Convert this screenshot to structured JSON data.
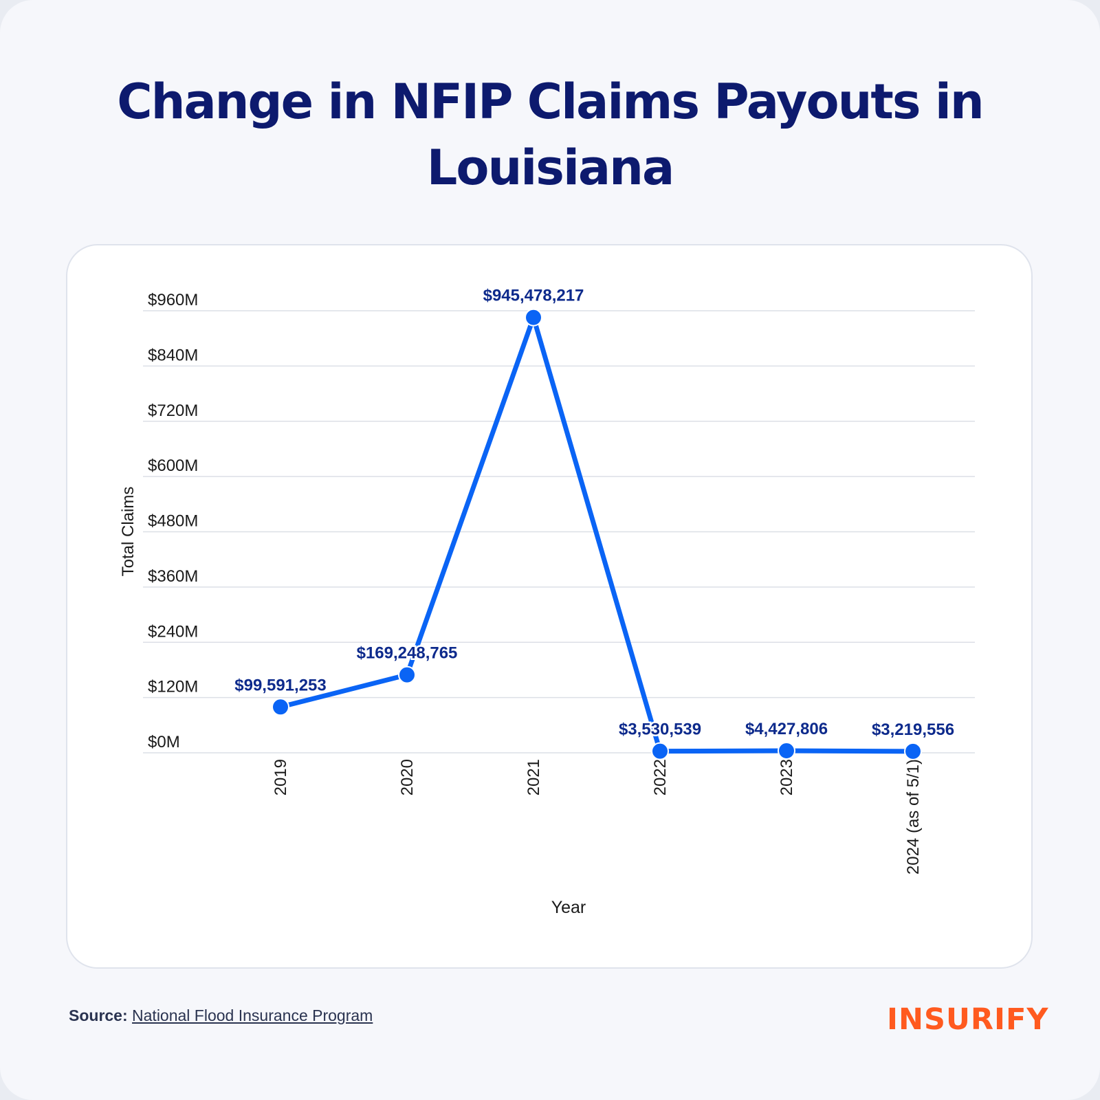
{
  "title": "Change in NFIP Claims Payouts in Louisiana",
  "source": {
    "label": "Source:",
    "link_text": "National Flood Insurance Program"
  },
  "brand": {
    "logo_text": "INSURIFY",
    "color": "#ff5a1f"
  },
  "colors": {
    "title": "#0d1a6e",
    "line": "#0a64f5",
    "data_label": "#0d2a8c",
    "grid": "#dcdfe6"
  },
  "chart_data": {
    "type": "line",
    "title": "Change in NFIP Claims Payouts in Louisiana",
    "xlabel": "Year",
    "ylabel": "Total Claims",
    "categories": [
      "2019",
      "2020",
      "2021",
      "2022",
      "2023",
      "2024 (as of 5/1)"
    ],
    "series": [
      {
        "values": [
          99591253,
          169248765,
          945478217,
          3530539,
          4427806,
          3219556
        ]
      }
    ],
    "data_labels": [
      "$99,591,253",
      "$169,248,765",
      "$945,478,217",
      "$3,530,539",
      "$4,427,806",
      "$3,219,556"
    ],
    "y_ticks": [
      0,
      120000000,
      240000000,
      360000000,
      480000000,
      600000000,
      720000000,
      840000000,
      960000000
    ],
    "y_tick_labels": [
      "$0M",
      "$120M",
      "$240M",
      "$360M",
      "$480M",
      "$600M",
      "$720M",
      "$840M",
      "$960M"
    ],
    "ylim": [
      0,
      960000000
    ],
    "grid": true,
    "legend": "none"
  }
}
